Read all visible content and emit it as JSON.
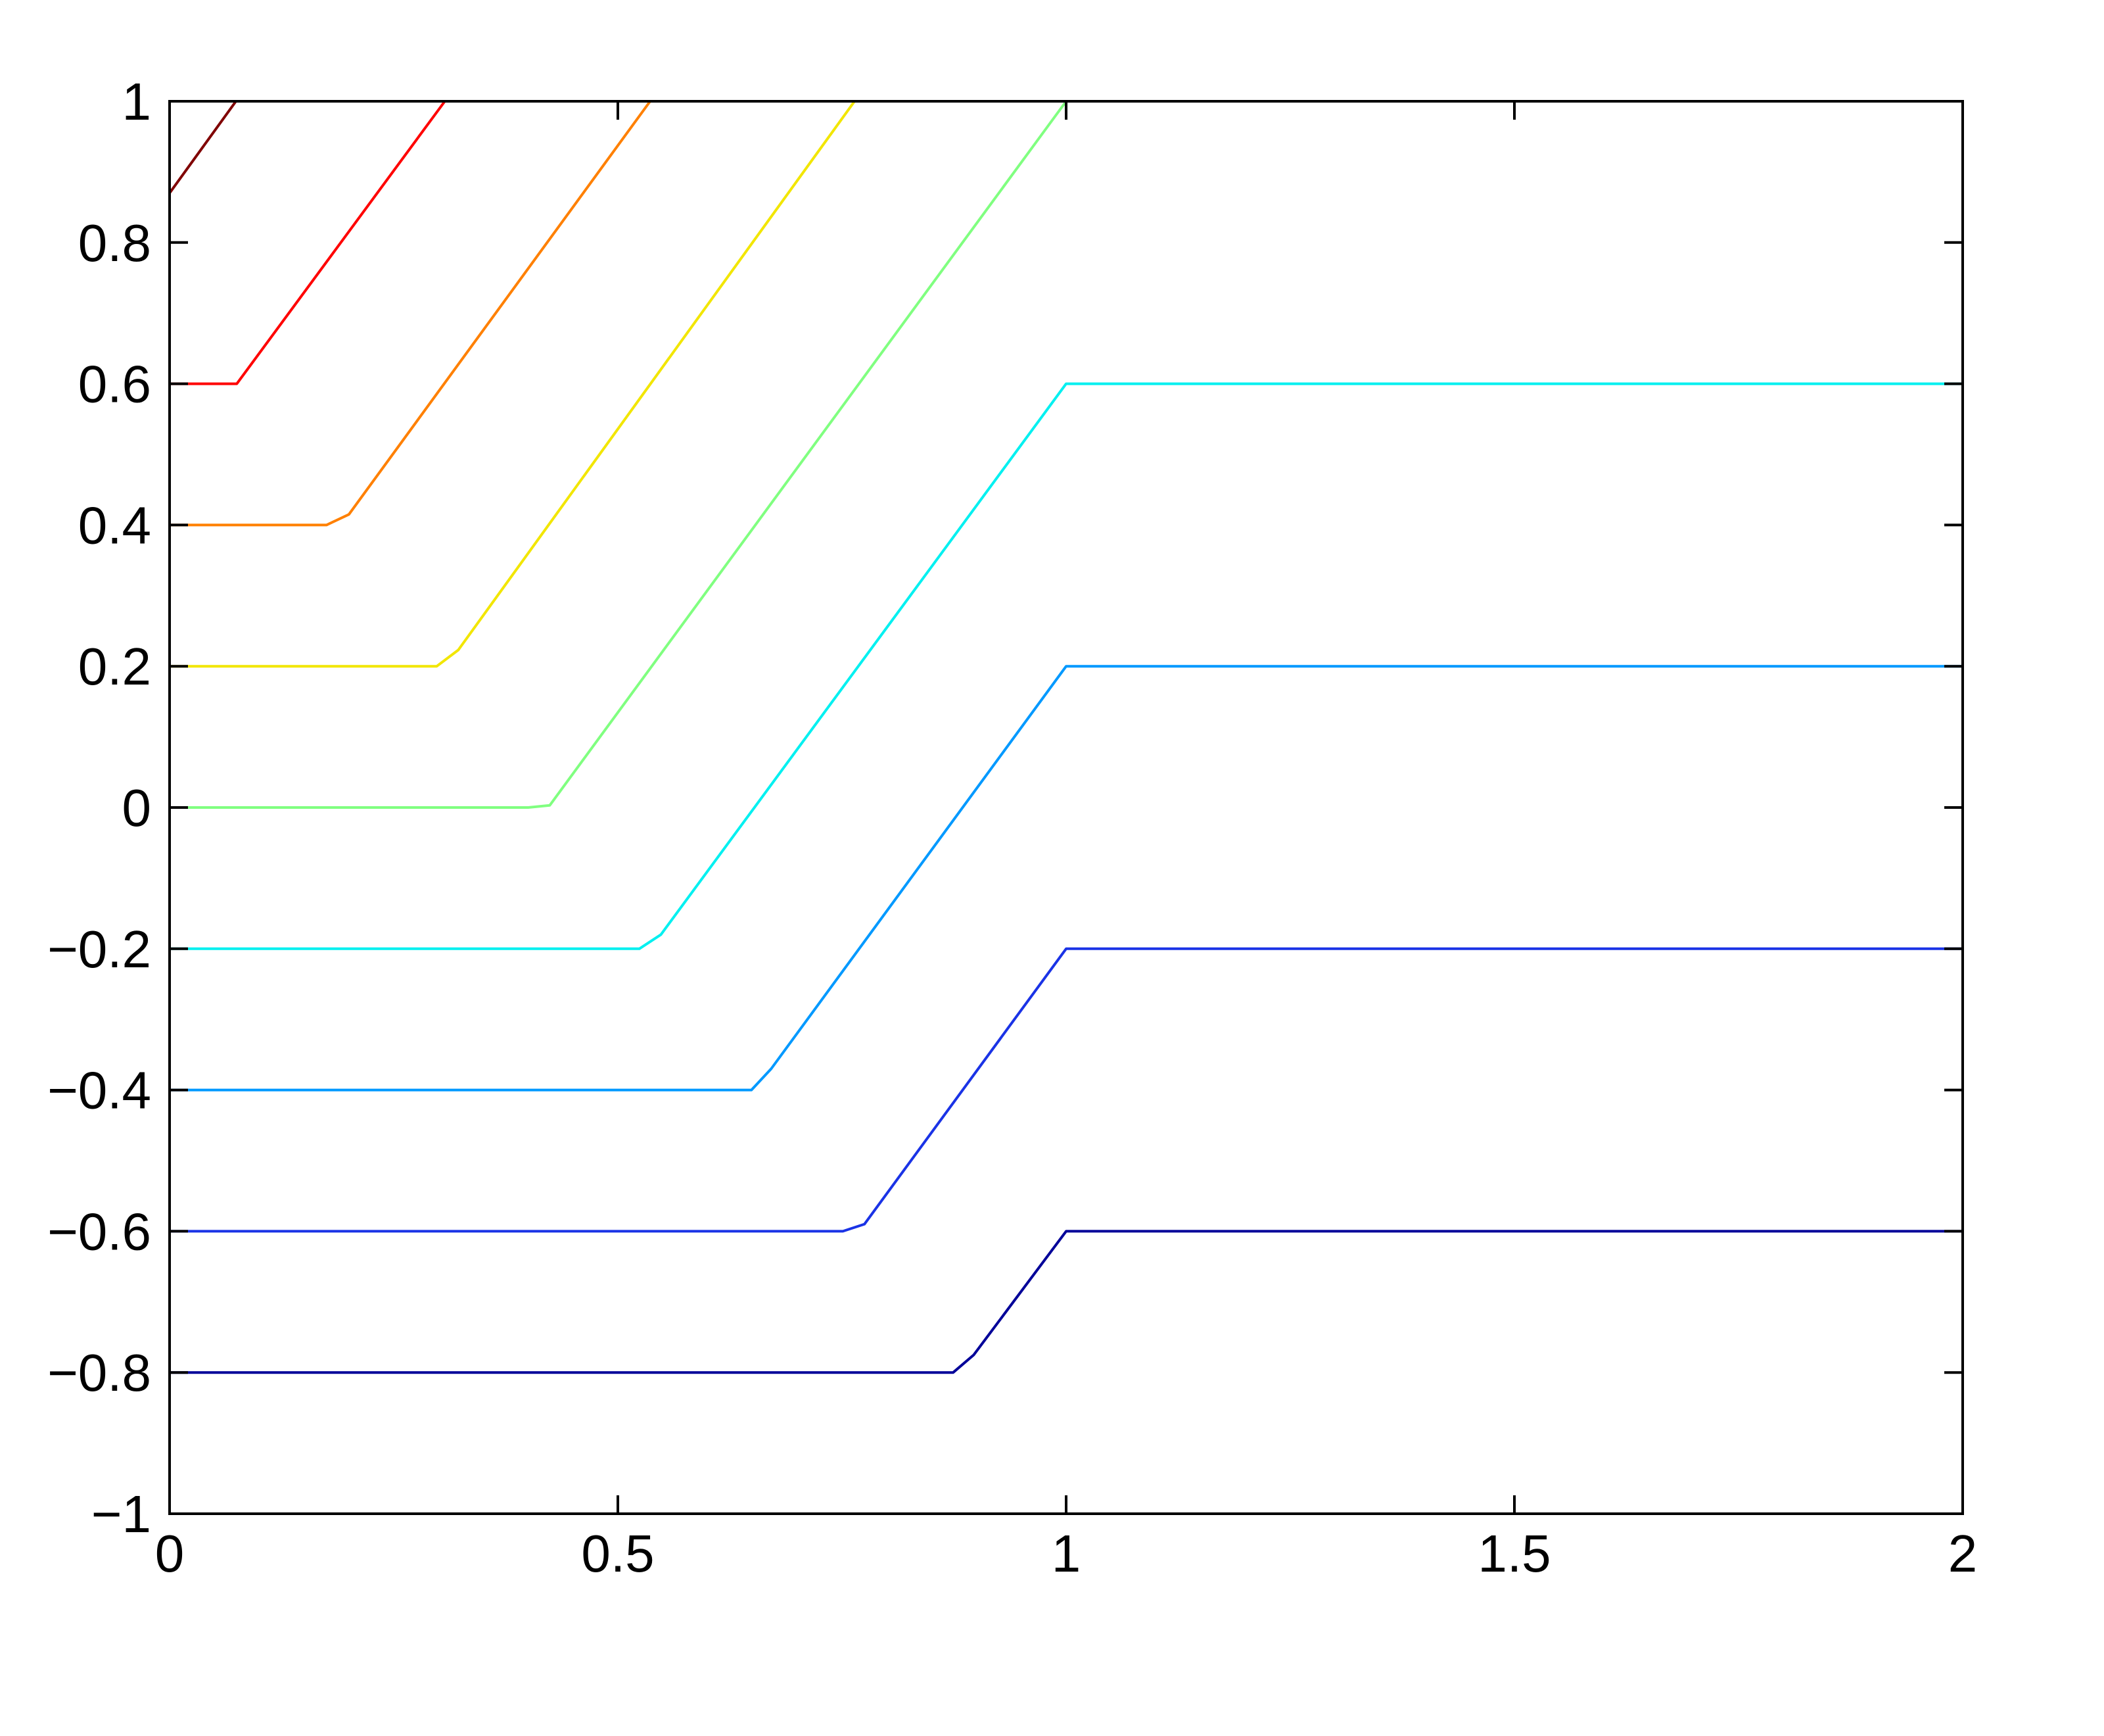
{
  "chart_data": {
    "type": "line",
    "xlim": [
      0,
      2
    ],
    "ylim": [
      -1,
      1
    ],
    "xticks": [
      0,
      0.5,
      1,
      1.5,
      2
    ],
    "yticks": [
      {
        "value": -1,
        "label": "−1"
      },
      {
        "value": -0.8,
        "label": "−0.8"
      },
      {
        "value": -0.6,
        "label": "−0.6"
      },
      {
        "value": -0.4,
        "label": "−0.4"
      },
      {
        "value": -0.2,
        "label": "−0.2"
      },
      0,
      0.2,
      0.4,
      0.6,
      0.8,
      1
    ],
    "series": [
      {
        "color": "#800000",
        "x": [
          0,
          0.074
        ],
        "values": [
          0.87,
          1
        ]
      },
      {
        "color": "#ff0000",
        "x": [
          0,
          0.075,
          0.307
        ],
        "values": [
          0.6,
          0.6,
          1
        ]
      },
      {
        "color": "#ff8000",
        "x": [
          0,
          0.175,
          0.2,
          0.536
        ],
        "values": [
          0.4,
          0.4,
          0.415,
          1
        ]
      },
      {
        "color": "#f2e600",
        "x": [
          0,
          0.298,
          0.322,
          0.764
        ],
        "values": [
          0.2,
          0.2,
          0.223,
          1
        ]
      },
      {
        "color": "#80ff80",
        "x": [
          0,
          0.4,
          0.424,
          1
        ],
        "values": [
          0,
          0,
          0.003,
          1
        ]
      },
      {
        "color": "#00f0f0",
        "x": [
          0,
          0.524,
          0.548,
          1,
          2
        ],
        "values": [
          -0.2,
          -0.2,
          -0.18,
          0.6,
          0.6
        ]
      },
      {
        "color": "#0099ff",
        "x": [
          0,
          0.649,
          0.671,
          1,
          2
        ],
        "values": [
          -0.4,
          -0.4,
          -0.37,
          0.2,
          0.2
        ]
      },
      {
        "color": "#1a33e6",
        "x": [
          0,
          0.751,
          0.775,
          1,
          2
        ],
        "values": [
          -0.6,
          -0.6,
          -0.59,
          -0.2,
          -0.2
        ]
      },
      {
        "color": "#000099",
        "x": [
          0,
          0.874,
          0.897,
          1,
          2
        ],
        "values": [
          -0.8,
          -0.8,
          -0.775,
          -0.6,
          -0.6
        ]
      }
    ]
  }
}
